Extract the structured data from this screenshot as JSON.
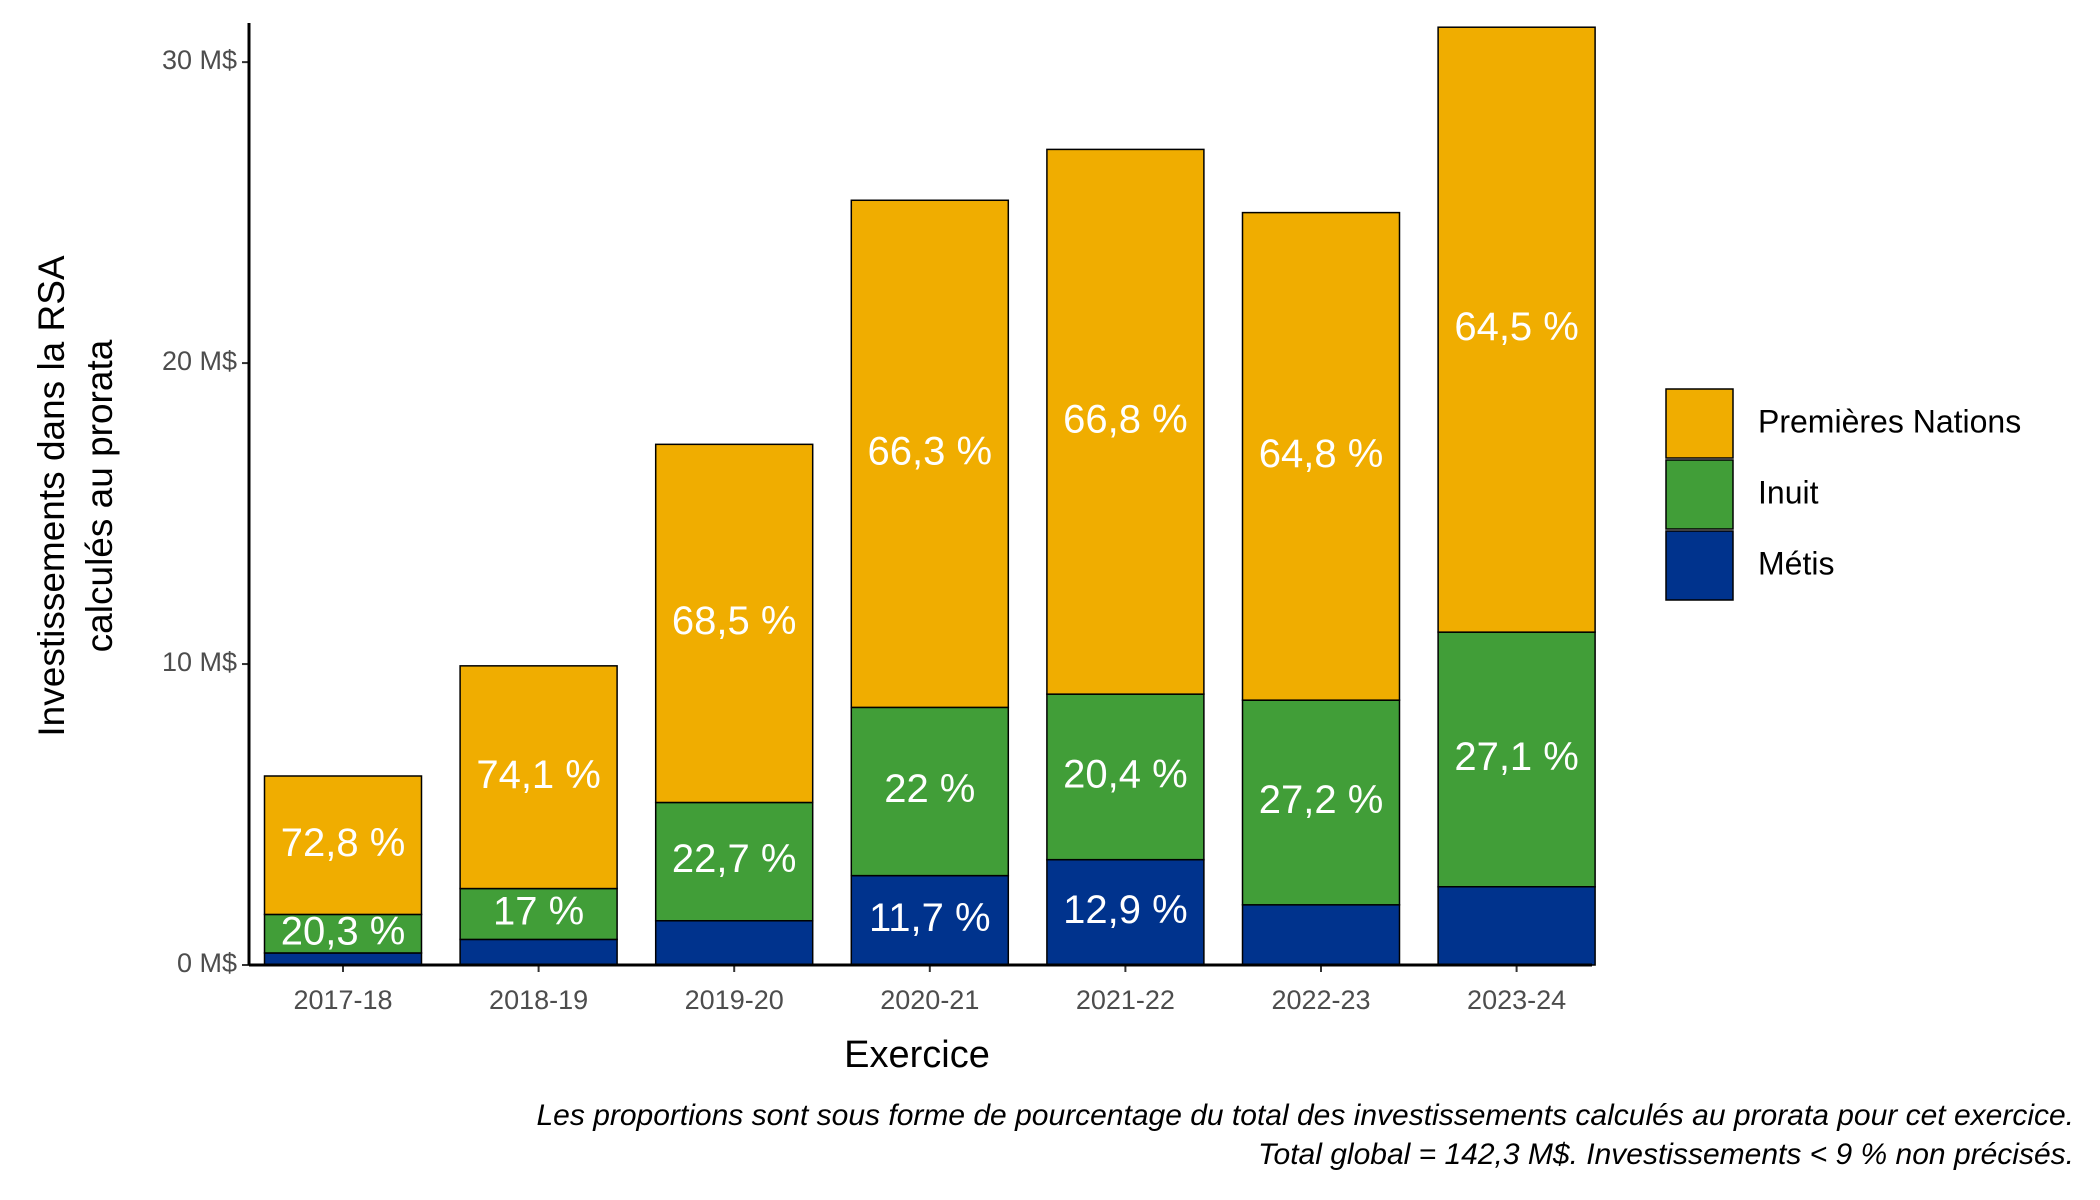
{
  "chart_data": {
    "type": "stacked_bar",
    "x_label": "Exercice",
    "y_label": [
      "Investissements dans la RSA",
      "calculés au prorata"
    ],
    "caption": [
      "Les proportions sont sous forme de pourcentage du total des investissements calculés au prorata pour cet exercice.",
      "Total global = 142,3 M$. Investissements < 9 % non précisés."
    ],
    "categories": [
      "2017-18",
      "2018-19",
      "2019-20",
      "2020-21",
      "2021-22",
      "2022-23",
      "2023-24"
    ],
    "series": [
      {
        "name": "Métis",
        "color": "#00338d",
        "values": [
          0.4,
          0.85,
          1.47,
          2.97,
          3.5,
          2.0,
          2.6
        ],
        "share_labels": [
          null,
          null,
          null,
          "11,7 %",
          "12,9 %",
          null,
          null
        ]
      },
      {
        "name": "Inuit",
        "color": "#419e38",
        "values": [
          1.28,
          1.69,
          3.93,
          5.59,
          5.5,
          6.8,
          8.46
        ],
        "share_labels": [
          "20,3 %",
          "17 %",
          "22,7 %",
          "22 %",
          "20,4 %",
          "27,2 %",
          "27,1 %"
        ]
      },
      {
        "name": "Premières Nations",
        "color": "#f0ad00",
        "values": [
          4.6,
          7.4,
          11.9,
          16.85,
          18.1,
          16.2,
          20.1
        ],
        "share_labels": [
          "72,8 %",
          "74,1 %",
          "68,5 %",
          "66,3 %",
          "66,8 %",
          "64,8 %",
          "64,5 %"
        ]
      }
    ],
    "ylim": [
      0,
      31.3
    ],
    "yticks": [
      {
        "value": 0,
        "label": "0 M$"
      },
      {
        "value": 10,
        "label": "10 M$"
      },
      {
        "value": 20,
        "label": "20 M$"
      },
      {
        "value": 30,
        "label": "30 M$"
      }
    ],
    "legend": "right"
  }
}
